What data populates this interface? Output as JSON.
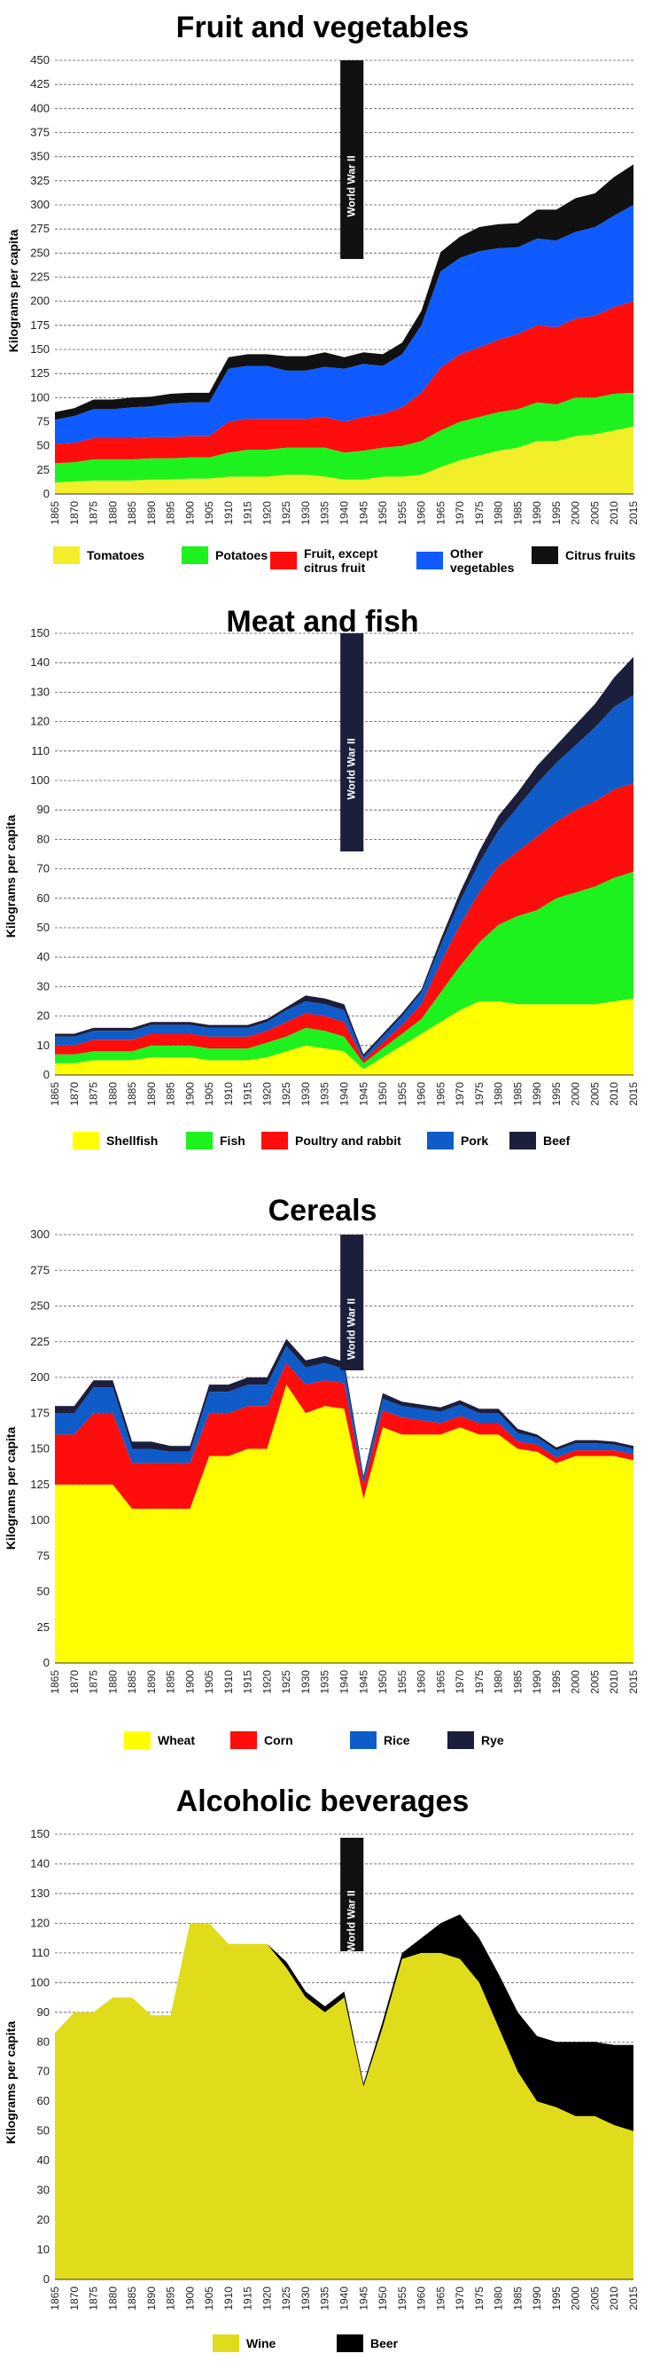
{
  "charts": [
    {
      "title": "Fruit and vegetables",
      "ylabel": "Kilograms per capita",
      "annotation": "World War II",
      "x_ticks": [
        "1865",
        "1870",
        "1875",
        "1880",
        "1885",
        "1890",
        "1895",
        "1900",
        "1905",
        "1910",
        "1915",
        "1920",
        "1925",
        "1930",
        "1935",
        "1940",
        "1945",
        "1950",
        "1955",
        "1960",
        "1965",
        "1970",
        "1975",
        "1980",
        "1985",
        "1990",
        "1995",
        "2000",
        "2005",
        "2010",
        "2015"
      ],
      "y_ticks": [
        "0",
        "25",
        "50",
        "75",
        "100",
        "125",
        "150",
        "175",
        "200",
        "225",
        "250",
        "275",
        "300",
        "325",
        "350",
        "375",
        "400",
        "425",
        "450"
      ],
      "legend": [
        {
          "label": "Tomatoes",
          "color": "#f2ef2a"
        },
        {
          "label": "Potatoes",
          "color": "#1ef21e"
        },
        {
          "label": "Fruit, except\ncitrus fruit",
          "color": "#ff0d0d"
        },
        {
          "label": "Other\nvegetables",
          "color": "#0f5bff"
        },
        {
          "label": "Citrus fruits",
          "color": "#111111"
        }
      ]
    },
    {
      "title": "Meat and fish",
      "ylabel": "Kilograms per capita",
      "annotation": "World War II",
      "x_ticks": [
        "1865",
        "1870",
        "1875",
        "1880",
        "1885",
        "1890",
        "1895",
        "1900",
        "1905",
        "1910",
        "1915",
        "1920",
        "1925",
        "1930",
        "1935",
        "1940",
        "1945",
        "1950",
        "1955",
        "1960",
        "1965",
        "1970",
        "1975",
        "1980",
        "1985",
        "1990",
        "1995",
        "2000",
        "2005",
        "2010",
        "2015"
      ],
      "y_ticks": [
        "0",
        "10",
        "20",
        "30",
        "40",
        "50",
        "60",
        "70",
        "80",
        "90",
        "100",
        "110",
        "120",
        "130",
        "140",
        "150"
      ],
      "legend": [
        {
          "label": "Shellfish",
          "color": "#ffff00"
        },
        {
          "label": "Fish",
          "color": "#1ef21e"
        },
        {
          "label": "Poultry and rabbit",
          "color": "#ff0d0d"
        },
        {
          "label": "Pork",
          "color": "#0f5bc8"
        },
        {
          "label": "Beef",
          "color": "#1c1f3c"
        }
      ]
    },
    {
      "title": "Cereals",
      "ylabel": "Kilograms per capita",
      "annotation": "World War II",
      "x_ticks": [
        "1865",
        "1870",
        "1875",
        "1880",
        "1885",
        "1890",
        "1895",
        "1900",
        "1905",
        "1910",
        "1915",
        "1920",
        "1925",
        "1930",
        "1935",
        "1940",
        "1945",
        "1950",
        "1955",
        "1960",
        "1965",
        "1970",
        "1975",
        "1980",
        "1985",
        "1990",
        "1995",
        "2000",
        "2005",
        "2010",
        "2015"
      ],
      "y_ticks": [
        "0",
        "25",
        "50",
        "75",
        "100",
        "125",
        "150",
        "175",
        "200",
        "225",
        "250",
        "275",
        "300"
      ],
      "legend": [
        {
          "label": "Wheat",
          "color": "#ffff00"
        },
        {
          "label": "Corn",
          "color": "#ff0d0d"
        },
        {
          "label": "Rice",
          "color": "#0f5bc8"
        },
        {
          "label": "Rye",
          "color": "#1c1f3c"
        }
      ]
    },
    {
      "title": "Alcoholic beverages",
      "ylabel": "Kilograms per capita",
      "annotation": "World War II",
      "x_ticks": [
        "1865",
        "1870",
        "1875",
        "1880",
        "1885",
        "1890",
        "1895",
        "1900",
        "1905",
        "1910",
        "1915",
        "1920",
        "1925",
        "1930",
        "1935",
        "1940",
        "1945",
        "1950",
        "1955",
        "1960",
        "1965",
        "1970",
        "1975",
        "1980",
        "1985",
        "1990",
        "1995",
        "2000",
        "2005",
        "2010",
        "2015"
      ],
      "y_ticks": [
        "0",
        "10",
        "20",
        "30",
        "40",
        "50",
        "60",
        "70",
        "80",
        "90",
        "100",
        "110",
        "120",
        "130",
        "140",
        "150"
      ],
      "legend": [
        {
          "label": "Wine",
          "color": "#e0dc1c"
        },
        {
          "label": "Beer",
          "color": "#000000"
        }
      ]
    }
  ],
  "chart_data": [
    {
      "type": "area",
      "title": "Fruit and vegetables",
      "ylabel": "Kilograms per capita",
      "xlim": [
        1865,
        2015
      ],
      "ylim": [
        0,
        450
      ],
      "annotation": {
        "label": "World War II",
        "x": [
          1939,
          1945
        ]
      },
      "x": [
        1865,
        1870,
        1875,
        1880,
        1885,
        1890,
        1895,
        1900,
        1905,
        1910,
        1915,
        1920,
        1925,
        1930,
        1935,
        1940,
        1945,
        1950,
        1955,
        1960,
        1965,
        1970,
        1975,
        1980,
        1985,
        1990,
        1995,
        2000,
        2005,
        2010,
        2015
      ],
      "series": [
        {
          "name": "Tomatoes",
          "color": "#f2ef2a",
          "values": [
            12,
            13,
            14,
            14,
            14,
            15,
            15,
            16,
            16,
            18,
            18,
            18,
            20,
            20,
            18,
            15,
            15,
            18,
            18,
            20,
            28,
            35,
            40,
            45,
            48,
            55,
            55,
            60,
            62,
            66,
            70
          ]
        },
        {
          "name": "Potatoes",
          "color": "#1ef21e",
          "values": [
            20,
            20,
            22,
            22,
            22,
            22,
            22,
            22,
            22,
            25,
            28,
            28,
            28,
            28,
            30,
            28,
            30,
            30,
            32,
            35,
            38,
            40,
            40,
            40,
            40,
            40,
            38,
            40,
            38,
            38,
            35
          ]
        },
        {
          "name": "Fruit, except citrus fruit",
          "color": "#ff0d0d",
          "values": [
            20,
            20,
            22,
            22,
            22,
            22,
            22,
            22,
            22,
            32,
            32,
            32,
            30,
            30,
            32,
            32,
            35,
            35,
            40,
            50,
            65,
            70,
            72,
            75,
            78,
            80,
            80,
            82,
            85,
            90,
            95
          ]
        },
        {
          "name": "Other vegetables",
          "color": "#0f5bff",
          "values": [
            25,
            28,
            30,
            30,
            32,
            32,
            35,
            35,
            35,
            55,
            55,
            55,
            50,
            50,
            52,
            55,
            55,
            50,
            55,
            70,
            100,
            100,
            100,
            95,
            90,
            90,
            90,
            90,
            92,
            95,
            100
          ]
        },
        {
          "name": "Citrus fruits",
          "color": "#111111",
          "values": [
            8,
            8,
            10,
            10,
            10,
            10,
            10,
            10,
            10,
            12,
            12,
            12,
            15,
            15,
            15,
            12,
            12,
            12,
            12,
            15,
            20,
            22,
            25,
            25,
            25,
            30,
            32,
            35,
            35,
            40,
            42
          ]
        }
      ]
    },
    {
      "type": "area",
      "title": "Meat and fish",
      "ylabel": "Kilograms per capita",
      "xlim": [
        1865,
        2015
      ],
      "ylim": [
        0,
        150
      ],
      "annotation": {
        "label": "World War II",
        "x": [
          1939,
          1945
        ]
      },
      "x": [
        1865,
        1870,
        1875,
        1880,
        1885,
        1890,
        1895,
        1900,
        1905,
        1910,
        1915,
        1920,
        1925,
        1930,
        1935,
        1940,
        1945,
        1950,
        1955,
        1960,
        1965,
        1970,
        1975,
        1980,
        1985,
        1990,
        1995,
        2000,
        2005,
        2010,
        2015
      ],
      "series": [
        {
          "name": "Shellfish",
          "color": "#ffff00",
          "values": [
            4,
            4,
            5,
            5,
            5,
            6,
            6,
            6,
            5,
            5,
            5,
            6,
            8,
            10,
            9,
            8,
            2,
            6,
            10,
            14,
            18,
            22,
            25,
            25,
            24,
            24,
            24,
            24,
            24,
            25,
            26
          ]
        },
        {
          "name": "Fish",
          "color": "#1ef21e",
          "values": [
            3,
            3,
            3,
            3,
            3,
            4,
            4,
            4,
            4,
            4,
            4,
            5,
            5,
            6,
            6,
            5,
            2,
            3,
            4,
            5,
            10,
            15,
            20,
            26,
            30,
            32,
            36,
            38,
            40,
            42,
            43
          ]
        },
        {
          "name": "Poultry and rabbit",
          "color": "#ff0d0d",
          "values": [
            3,
            3,
            4,
            4,
            4,
            4,
            4,
            4,
            4,
            4,
            4,
            4,
            5,
            5,
            5,
            5,
            1,
            2,
            3,
            5,
            10,
            14,
            17,
            20,
            22,
            25,
            26,
            28,
            29,
            30,
            30
          ]
        },
        {
          "name": "Pork",
          "color": "#0f5bc8",
          "values": [
            3,
            3,
            3,
            3,
            3,
            3,
            3,
            3,
            3,
            3,
            3,
            3,
            4,
            4,
            4,
            4,
            1,
            2,
            3,
            4,
            6,
            8,
            10,
            12,
            15,
            18,
            20,
            22,
            25,
            28,
            30
          ]
        },
        {
          "name": "Beef",
          "color": "#1c1f3c",
          "values": [
            1,
            1,
            1,
            1,
            1,
            1,
            1,
            1,
            1,
            1,
            1,
            1,
            1,
            2,
            2,
            2,
            1,
            1,
            1,
            1,
            2,
            3,
            4,
            5,
            5,
            6,
            6,
            7,
            8,
            10,
            13
          ]
        }
      ]
    },
    {
      "type": "area",
      "title": "Cereals",
      "ylabel": "Kilograms per capita",
      "xlim": [
        1865,
        2015
      ],
      "ylim": [
        0,
        300
      ],
      "annotation": {
        "label": "World War II",
        "x": [
          1939,
          1945
        ]
      },
      "x": [
        1865,
        1870,
        1875,
        1880,
        1885,
        1890,
        1895,
        1900,
        1905,
        1910,
        1915,
        1920,
        1925,
        1930,
        1935,
        1940,
        1945,
        1950,
        1955,
        1960,
        1965,
        1970,
        1975,
        1980,
        1985,
        1990,
        1995,
        2000,
        2005,
        2010,
        2015
      ],
      "series": [
        {
          "name": "Wheat",
          "color": "#ffff00",
          "values": [
            125,
            125,
            125,
            125,
            108,
            108,
            108,
            108,
            145,
            145,
            150,
            150,
            195,
            175,
            180,
            178,
            115,
            165,
            160,
            160,
            160,
            165,
            160,
            160,
            150,
            148,
            140,
            145,
            145,
            145,
            142
          ]
        },
        {
          "name": "Corn",
          "color": "#ff0d0d",
          "values": [
            35,
            35,
            50,
            50,
            32,
            32,
            32,
            32,
            30,
            30,
            30,
            30,
            15,
            20,
            18,
            18,
            10,
            12,
            12,
            10,
            8,
            8,
            8,
            8,
            5,
            5,
            4,
            4,
            4,
            4,
            4
          ]
        },
        {
          "name": "Rice",
          "color": "#0f5bc8",
          "values": [
            15,
            15,
            18,
            18,
            10,
            10,
            8,
            8,
            15,
            15,
            15,
            15,
            12,
            12,
            12,
            10,
            4,
            8,
            8,
            8,
            8,
            8,
            7,
            7,
            6,
            5,
            5,
            5,
            5,
            4,
            4
          ]
        },
        {
          "name": "Rye",
          "color": "#1c1f3c",
          "values": [
            5,
            5,
            5,
            5,
            5,
            5,
            4,
            4,
            5,
            5,
            5,
            5,
            5,
            5,
            5,
            5,
            2,
            4,
            3,
            3,
            3,
            3,
            3,
            3,
            3,
            2,
            2,
            2,
            2,
            2,
            2
          ]
        }
      ]
    },
    {
      "type": "area",
      "title": "Alcoholic beverages",
      "ylabel": "Kilograms per capita",
      "xlim": [
        1865,
        2015
      ],
      "ylim": [
        0,
        150
      ],
      "annotation": {
        "label": "World War II",
        "x": [
          1939,
          1945
        ]
      },
      "x": [
        1865,
        1870,
        1875,
        1880,
        1885,
        1890,
        1895,
        1900,
        1905,
        1910,
        1915,
        1920,
        1925,
        1930,
        1935,
        1940,
        1945,
        1950,
        1955,
        1960,
        1965,
        1970,
        1975,
        1980,
        1985,
        1990,
        1995,
        2000,
        2005,
        2010,
        2015
      ],
      "series": [
        {
          "name": "Wine",
          "color": "#e0dc1c",
          "values": [
            83,
            90,
            90,
            95,
            95,
            89,
            89,
            120,
            120,
            113,
            113,
            113,
            105,
            95,
            90,
            95,
            65,
            85,
            108,
            110,
            110,
            108,
            100,
            85,
            70,
            60,
            58,
            55,
            55,
            52,
            50
          ]
        },
        {
          "name": "Beer",
          "color": "#000000",
          "values": [
            0,
            0,
            0,
            0,
            0,
            0,
            0,
            0,
            0,
            0,
            0,
            0,
            2,
            2,
            2,
            2,
            1,
            2,
            2,
            5,
            10,
            15,
            15,
            18,
            20,
            22,
            22,
            25,
            25,
            27,
            29
          ]
        }
      ]
    }
  ]
}
